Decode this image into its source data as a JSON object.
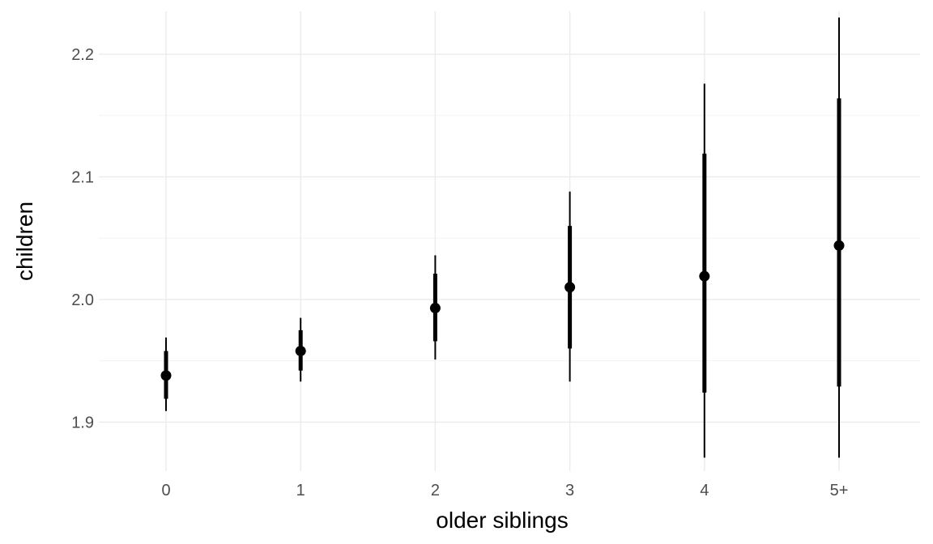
{
  "chart_data": {
    "type": "pointrange",
    "xlabel": "older siblings",
    "ylabel": "children",
    "categories": [
      "0",
      "1",
      "2",
      "3",
      "4",
      "5+"
    ],
    "ylim": [
      1.86,
      2.235
    ],
    "yticks": [
      1.9,
      2.0,
      2.1,
      2.2
    ],
    "ytick_labels": [
      "1.9",
      "2.0",
      "2.1",
      "2.2"
    ],
    "grid": true,
    "legend": "none",
    "points": [
      {
        "x": "0",
        "y": 1.938,
        "inner": [
          1.919,
          1.958
        ],
        "outer": [
          1.909,
          1.969
        ]
      },
      {
        "x": "1",
        "y": 1.958,
        "inner": [
          1.942,
          1.975
        ],
        "outer": [
          1.933,
          1.985
        ]
      },
      {
        "x": "2",
        "y": 1.993,
        "inner": [
          1.966,
          2.021
        ],
        "outer": [
          1.951,
          2.036
        ]
      },
      {
        "x": "3",
        "y": 2.01,
        "inner": [
          1.96,
          2.06
        ],
        "outer": [
          1.933,
          2.088
        ]
      },
      {
        "x": "4",
        "y": 2.019,
        "inner": [
          1.924,
          2.119
        ],
        "outer": [
          1.871,
          2.176
        ]
      },
      {
        "x": "5+",
        "y": 2.044,
        "inner": [
          1.929,
          2.164
        ],
        "outer": [
          1.871,
          2.23
        ]
      }
    ],
    "colors": {
      "points": "#000000",
      "grid": "#ebebeb",
      "tick_text": "#4d4d4d"
    }
  }
}
